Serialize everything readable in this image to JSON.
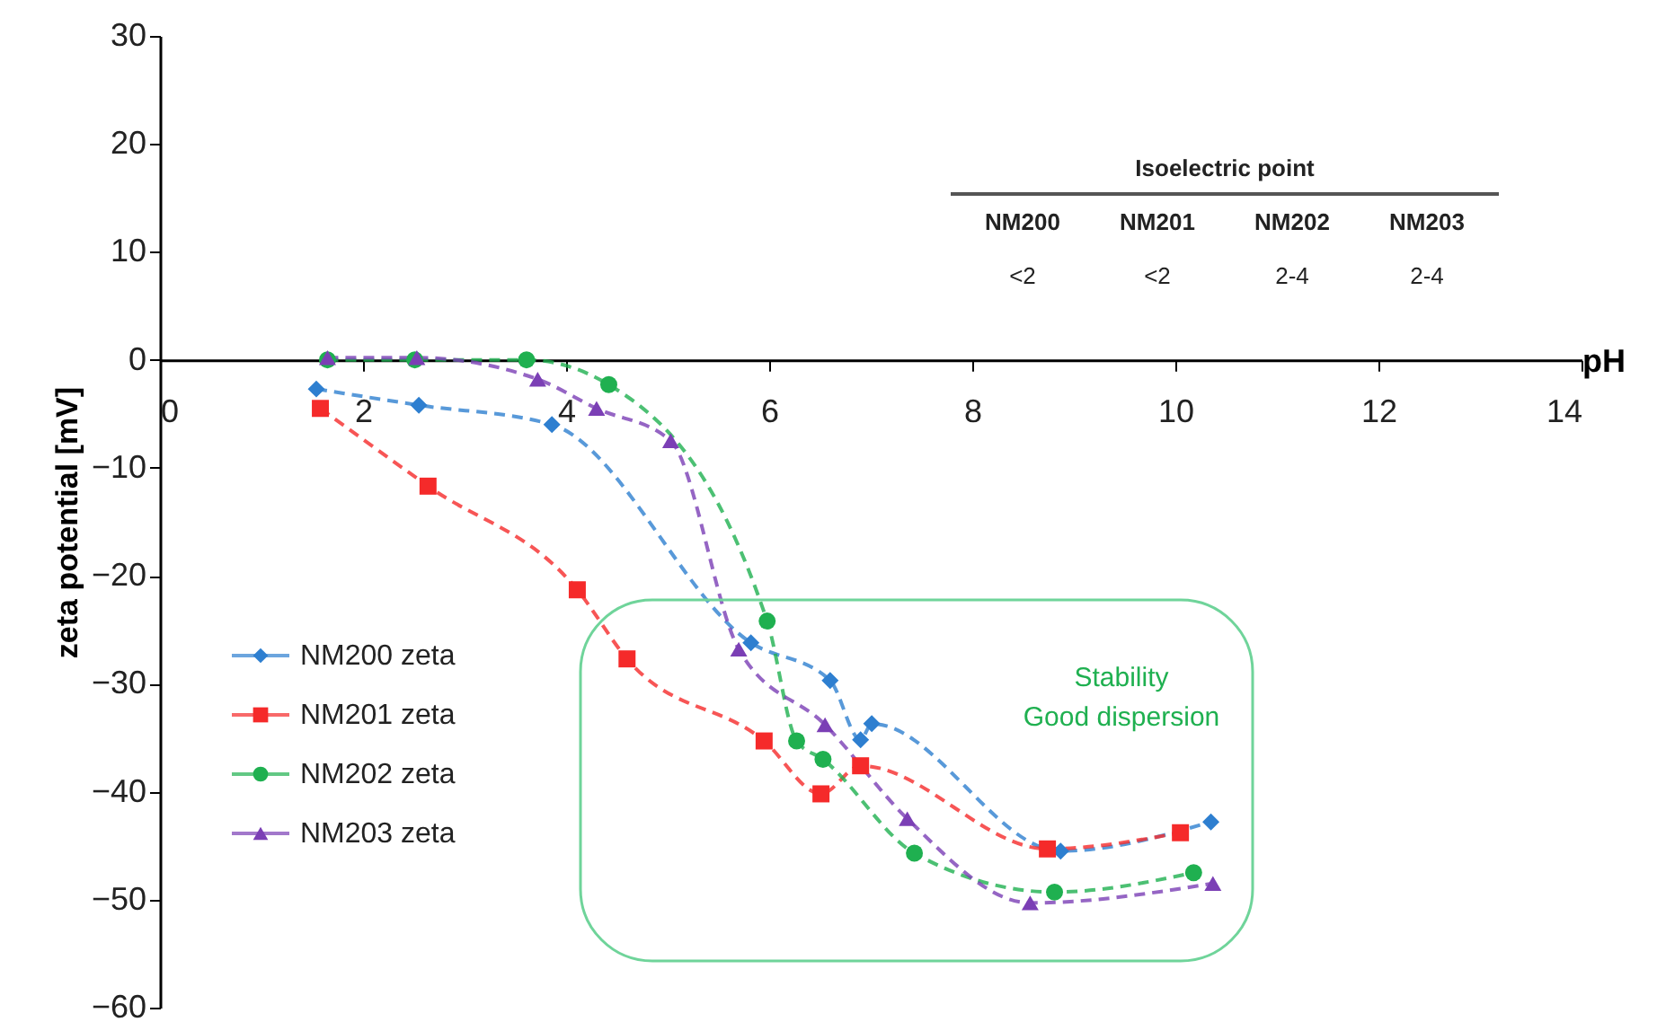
{
  "chart_data": {
    "type": "line",
    "xlabel": "pH",
    "ylabel": "zeta potential [mV]",
    "xlim": [
      0,
      14
    ],
    "xticks": [
      0,
      2,
      4,
      6,
      8,
      10,
      12,
      14
    ],
    "ylim": [
      -60,
      30
    ],
    "yticks": [
      -60,
      -50,
      -40,
      -30,
      -20,
      -10,
      0,
      10,
      20,
      30
    ],
    "grid": false,
    "legend": "bottom left",
    "line_style": "dashed",
    "series": [
      {
        "name": "NM200 zeta",
        "color": "#2e7fd0",
        "marker": "diamond",
        "x": [
          1.54,
          2.55,
          3.86,
          5.82,
          6.6,
          6.9,
          7.01,
          8.87,
          10.35
        ],
        "values": [
          -2.7,
          -4.2,
          -6.0,
          -26.2,
          -29.7,
          -35.2,
          -33.7,
          -45.5,
          -42.8
        ]
      },
      {
        "name": "NM201 zeta",
        "color": "#f52a2a",
        "marker": "square",
        "x": [
          1.58,
          2.64,
          4.11,
          4.6,
          5.95,
          6.51,
          6.9,
          8.74,
          10.05
        ],
        "values": [
          -4.5,
          -11.7,
          -21.3,
          -27.7,
          -35.3,
          -40.2,
          -37.6,
          -45.3,
          -43.8
        ]
      },
      {
        "name": "NM202 zeta",
        "color": "#1fb050",
        "marker": "circle",
        "x": [
          1.65,
          2.51,
          3.61,
          4.42,
          5.98,
          6.27,
          6.53,
          7.43,
          8.81,
          10.18
        ],
        "values": [
          0.0,
          0.0,
          0.0,
          -2.3,
          -24.2,
          -35.3,
          -37.0,
          -45.7,
          -49.3,
          -47.5
        ]
      },
      {
        "name": "NM203 zeta",
        "color": "#7b3fb5",
        "marker": "triangle",
        "x": [
          1.65,
          2.53,
          3.72,
          4.3,
          5.03,
          5.7,
          6.55,
          7.36,
          8.57,
          10.37
        ],
        "values": [
          0.2,
          0.2,
          -1.8,
          -4.5,
          -7.5,
          -26.8,
          -33.8,
          -42.5,
          -50.3,
          -48.5
        ]
      }
    ],
    "annotations": [
      "Isoelectric point",
      "NM200",
      "NM201",
      "NM202",
      "NM203",
      "<2",
      "<2",
      "2-4",
      "2-4",
      "Stability",
      "Good dispersion"
    ]
  }
}
